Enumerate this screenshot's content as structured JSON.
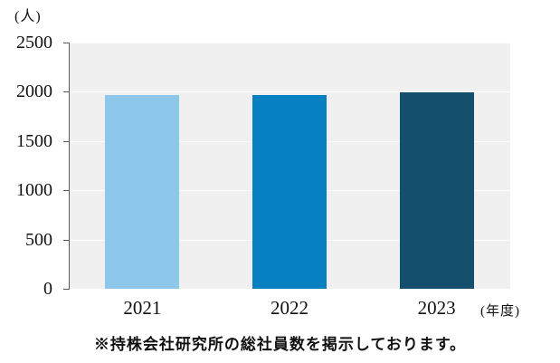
{
  "chart_data": {
    "type": "bar",
    "title": "",
    "unit_label": "(人)",
    "xlabel": "(年度)",
    "ylabel": "(人)",
    "categories": [
      "2021",
      "2022",
      "2023"
    ],
    "values": [
      1965,
      1970,
      1995
    ],
    "bar_colors": [
      "#8dc8ea",
      "#0780c2",
      "#14506e"
    ],
    "ylim": [
      0,
      2500
    ],
    "yticks": [
      0,
      500,
      1000,
      1500,
      2000,
      2500
    ],
    "grid": true,
    "legend_position": "none",
    "plot_background": "#f0f0f0",
    "gridline_color": "#fbfbfb",
    "axis_color": "#595959",
    "note": "※持株会社研究所の総社員数を掲示しております。"
  }
}
